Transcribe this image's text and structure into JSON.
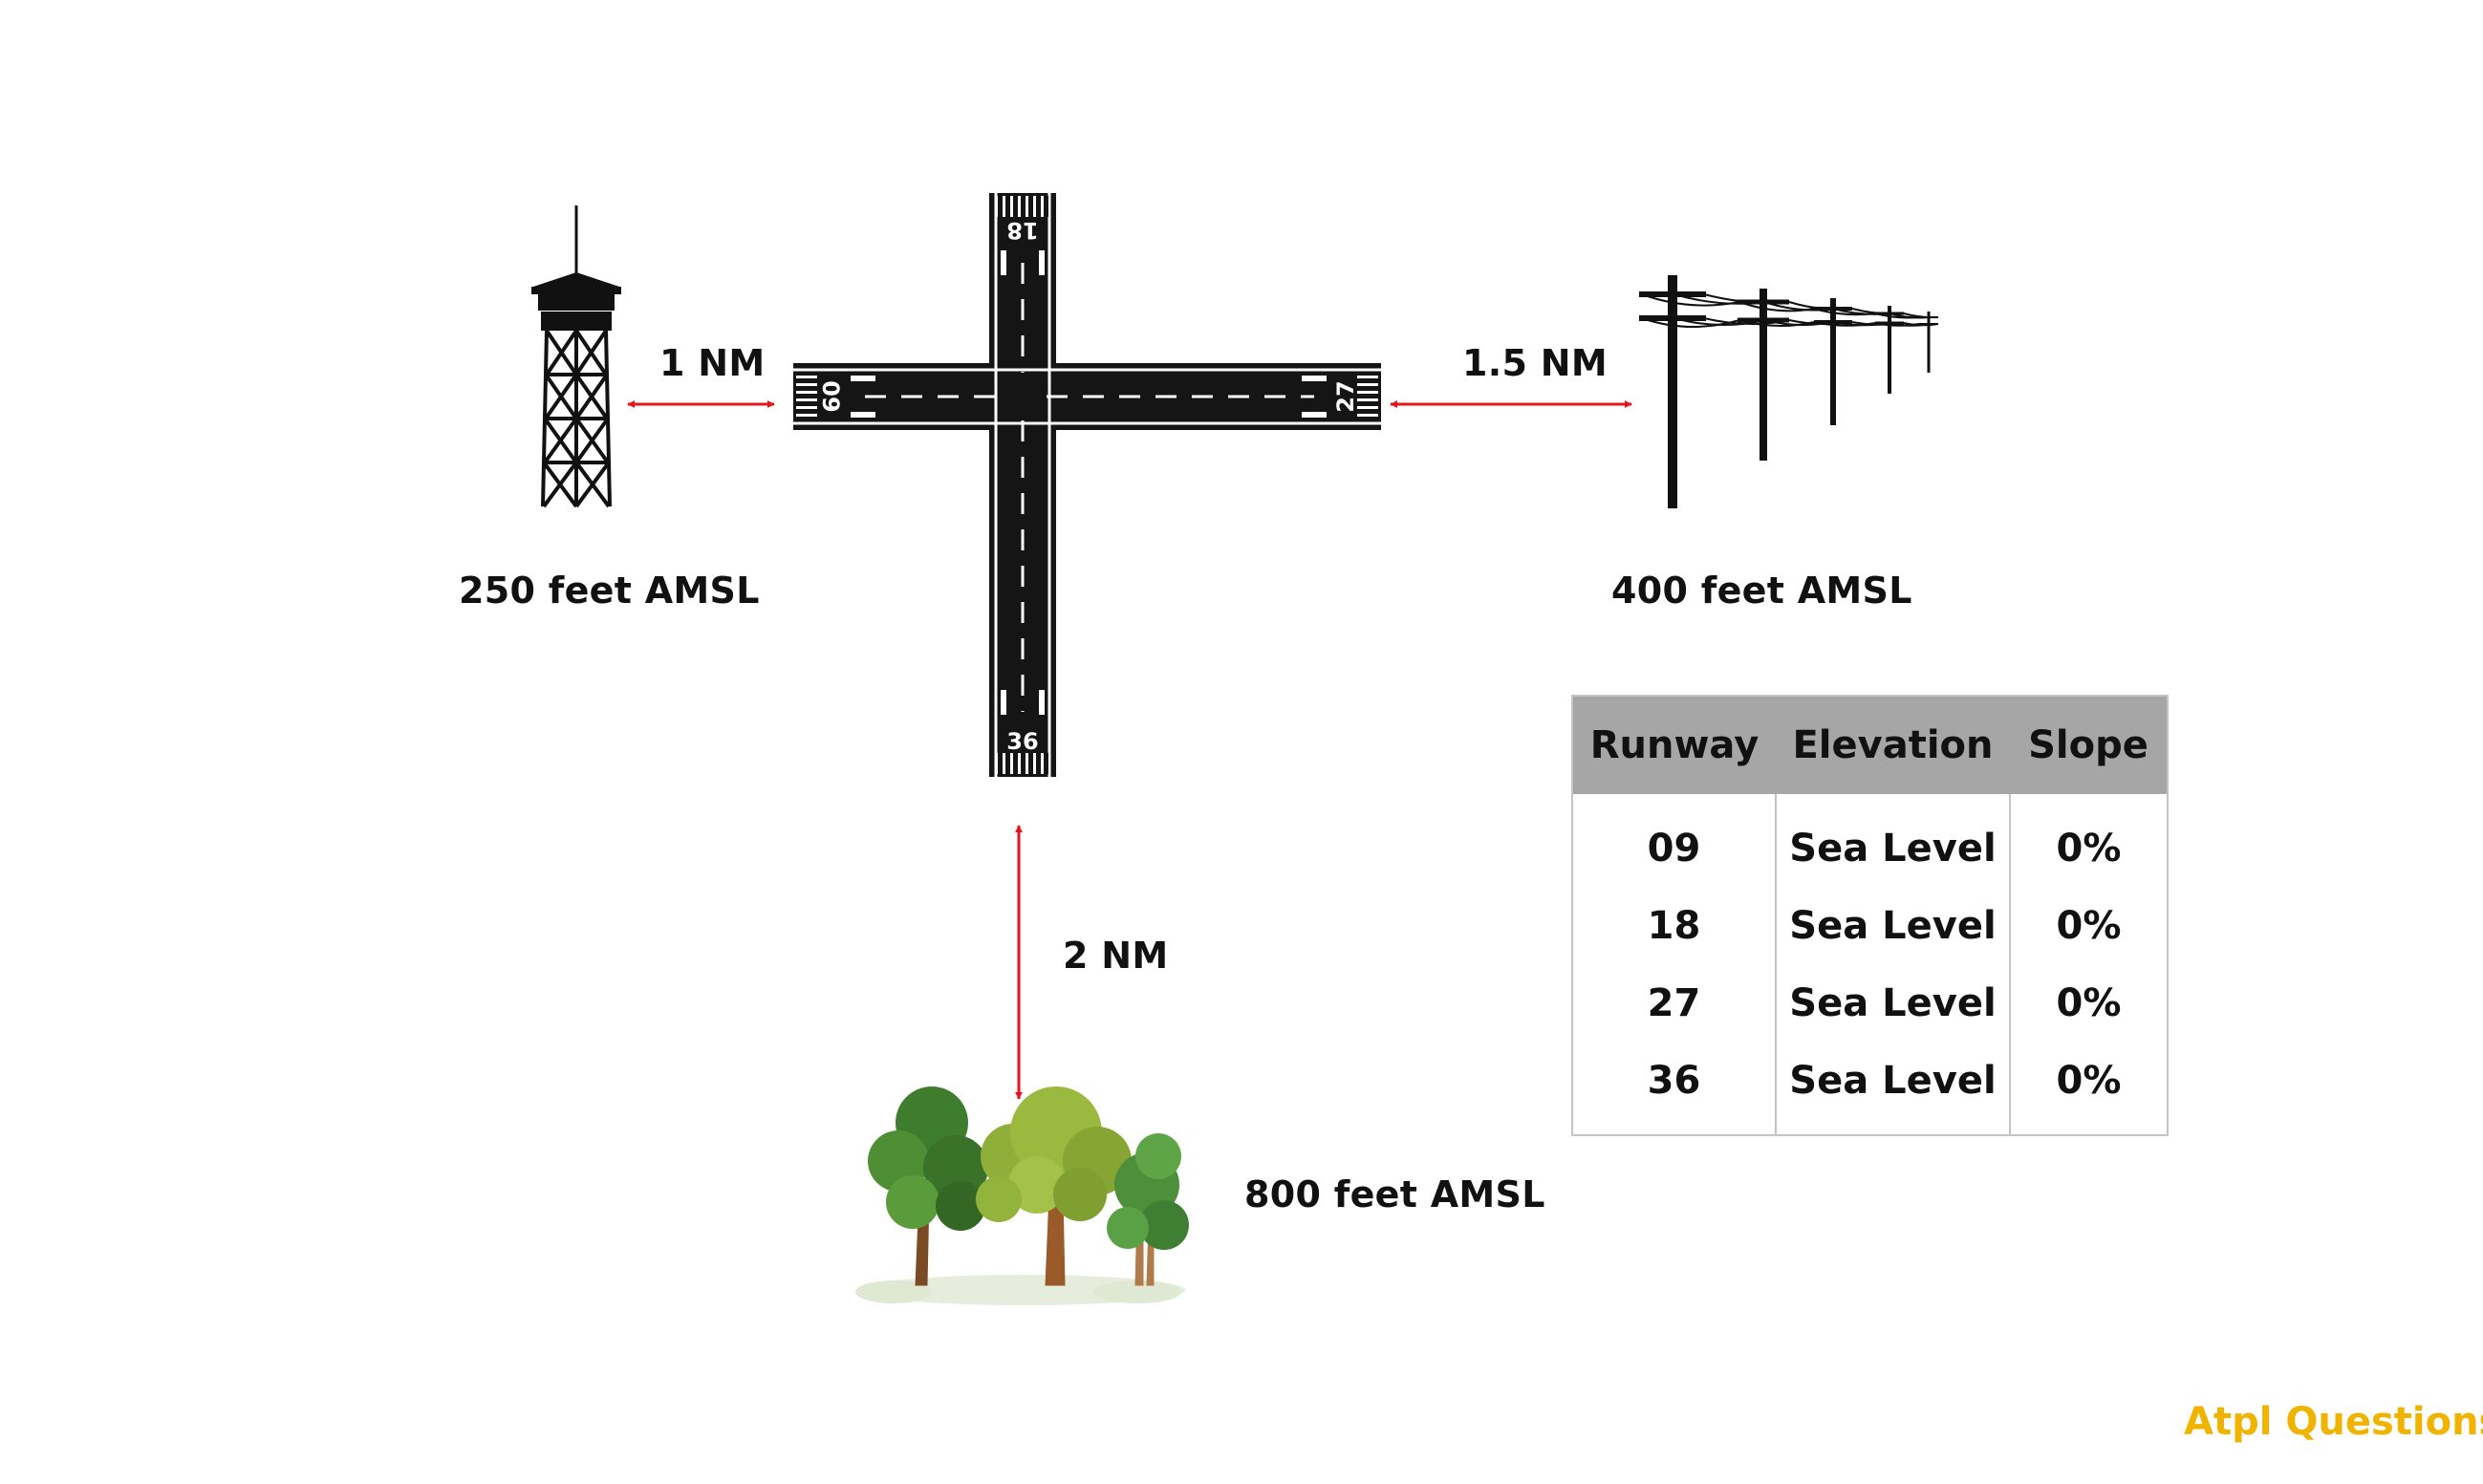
{
  "runway_numbers": {
    "north": "18",
    "south": "36",
    "west": "09",
    "east": "27"
  },
  "distances": {
    "tower": "1 NM",
    "power_lines": "1.5 NM",
    "trees": "2 NM"
  },
  "obstacles": {
    "tower": {
      "icon": "tower-icon",
      "elevation": "250 feet AMSL"
    },
    "power_lines": {
      "icon": "power-lines-icon",
      "elevation": "400 feet AMSL"
    },
    "trees": {
      "icon": "trees-icon",
      "elevation": "800 feet AMSL"
    }
  },
  "table": {
    "headers": [
      "Runway",
      "Elevation",
      "Slope"
    ],
    "rows": [
      [
        "09",
        "Sea Level",
        "0%"
      ],
      [
        "18",
        "Sea Level",
        "0%"
      ],
      [
        "27",
        "Sea Level",
        "0%"
      ],
      [
        "36",
        "Sea Level",
        "0%"
      ]
    ]
  },
  "colors": {
    "arrow": "#e8141b",
    "runway": "#151515",
    "table_header": "#a6a6a6",
    "brand": "#f0b400"
  },
  "brand": {
    "text": "Atpl Questions"
  }
}
